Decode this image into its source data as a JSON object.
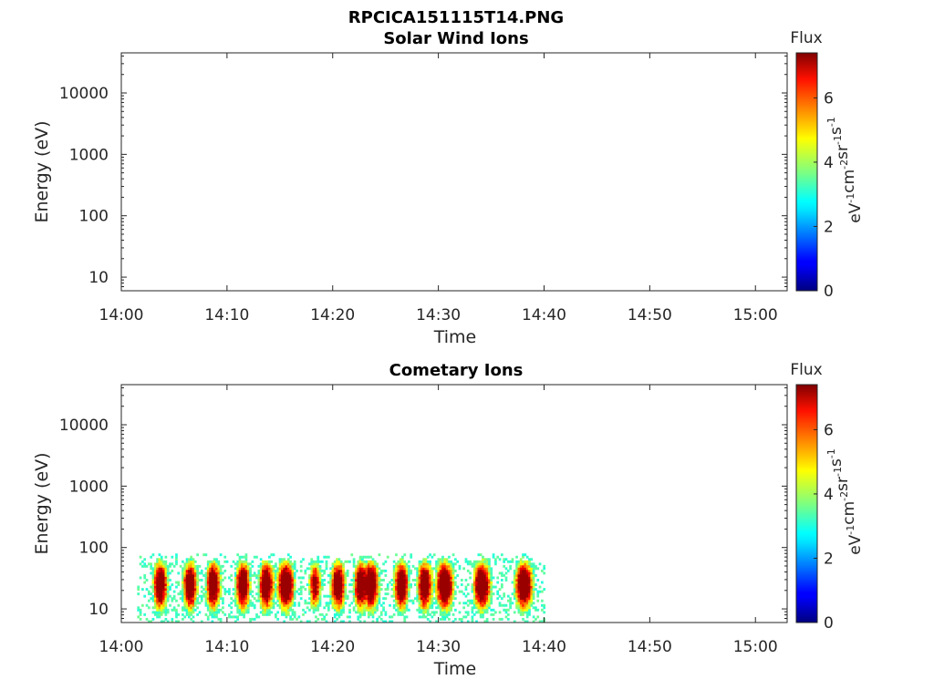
{
  "figure": {
    "title": "RPCICA151115T14.PNG"
  },
  "colormap": "jet",
  "chart_data": [
    {
      "type": "heatmap",
      "title": "Solar Wind Ions",
      "xlabel": "Time",
      "ylabel": "Energy (eV)",
      "x_ticks": [
        "14:00",
        "14:10",
        "14:20",
        "14:30",
        "14:40",
        "14:50",
        "15:00"
      ],
      "xlim_minutes": [
        0,
        63
      ],
      "y_scale": "log",
      "y_ticks": [
        "10",
        "100",
        "1000",
        "10000"
      ],
      "ylim": [
        6,
        45000
      ],
      "colorbar": {
        "label": "Flux",
        "units": "eV-1cm-2sr-1s-1",
        "ticks": [
          "0",
          "2",
          "4",
          "6"
        ],
        "range": [
          0,
          7.4
        ]
      },
      "data": []
    },
    {
      "type": "heatmap",
      "title": "Cometary Ions",
      "xlabel": "Time",
      "ylabel": "Energy (eV)",
      "x_ticks": [
        "14:00",
        "14:10",
        "14:20",
        "14:30",
        "14:40",
        "14:50",
        "15:00"
      ],
      "xlim_minutes": [
        0,
        63
      ],
      "y_scale": "log",
      "y_ticks": [
        "10",
        "100",
        "1000",
        "10000"
      ],
      "ylim": [
        6,
        45000
      ],
      "colorbar": {
        "label": "Flux",
        "units": "eV-1cm-2sr-1s-1",
        "ticks": [
          "0",
          "2",
          "4",
          "6"
        ],
        "range": [
          0,
          7.4
        ]
      },
      "data": {
        "time_range_minutes": [
          1.5,
          40.0
        ],
        "energy_range_ev": [
          6,
          80
        ],
        "peak_energy_ev": 20,
        "flux_max": 7.0,
        "high_flux_times_minutes": [
          3.5,
          6.5,
          8.5,
          11.5,
          13.5,
          15.5,
          18.5,
          20.5,
          22.5,
          23.5,
          26.5,
          28.5,
          30.5,
          34.0,
          38.0
        ],
        "low_flux_gaps_minutes": [
          2.5,
          5.0,
          7.5,
          10.0,
          12.5,
          17.0,
          19.0,
          21.5,
          25.0,
          27.5,
          32.5,
          36.0
        ]
      }
    }
  ]
}
